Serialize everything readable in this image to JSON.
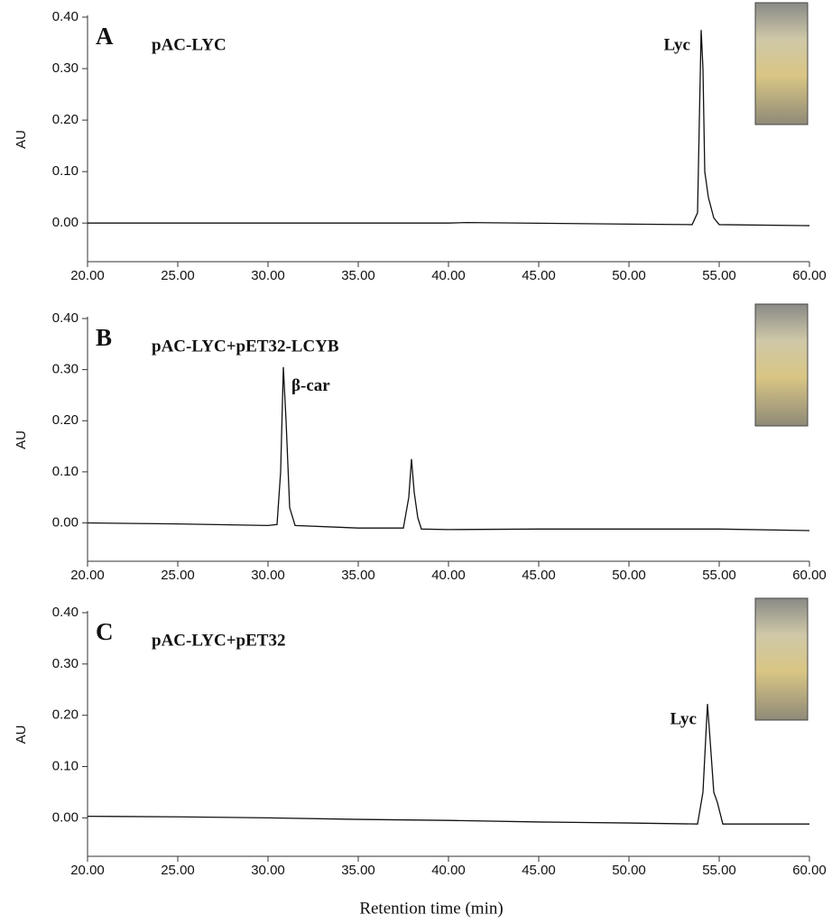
{
  "chart_data": [
    {
      "type": "line",
      "panel_label": "A",
      "title": "pAC-LYC",
      "ylabel": "AU",
      "annotations": [
        {
          "text": "Lyc"
        }
      ],
      "xlim": [
        20,
        60
      ],
      "ylim": [
        -0.075,
        0.4
      ],
      "xticks": [
        {
          "value": 20,
          "label": "20.00"
        },
        {
          "value": 25,
          "label": "25.00"
        },
        {
          "value": 30,
          "label": "30.00"
        },
        {
          "value": 35,
          "label": "35.00"
        },
        {
          "value": 40,
          "label": "40.00"
        },
        {
          "value": 45,
          "label": "45.00"
        },
        {
          "value": 50,
          "label": "50.00"
        },
        {
          "value": 55,
          "label": "55.00"
        },
        {
          "value": 60,
          "label": "60.00"
        }
      ],
      "yticks": [
        {
          "value": 0,
          "label": "0.00"
        },
        {
          "value": 0.1,
          "label": "0.10"
        },
        {
          "value": 0.2,
          "label": "0.20"
        },
        {
          "value": 0.3,
          "label": "0.30"
        },
        {
          "value": 0.4,
          "label": "0.40"
        }
      ],
      "series": [
        {
          "color": "#111111",
          "x": [
            20,
            30,
            40,
            41,
            50,
            53.5,
            53.8,
            53.9,
            54.0,
            54.1,
            54.2,
            54.4,
            54.7,
            55,
            60
          ],
          "values": [
            0,
            0,
            0,
            0.001,
            -0.002,
            -0.003,
            0.02,
            0.2,
            0.375,
            0.3,
            0.1,
            0.05,
            0.01,
            -0.003,
            -0.005
          ]
        }
      ]
    },
    {
      "type": "line",
      "panel_label": "B",
      "title": "pAC-LYC+pET32-LCYB",
      "ylabel": "AU",
      "annotations": [
        {
          "text": "β-car"
        }
      ],
      "xlim": [
        20,
        60
      ],
      "ylim": [
        -0.075,
        0.4
      ],
      "xticks": [
        {
          "value": 20,
          "label": "20.00"
        },
        {
          "value": 25,
          "label": "25.00"
        },
        {
          "value": 30,
          "label": "30.00"
        },
        {
          "value": 35,
          "label": "35.00"
        },
        {
          "value": 40,
          "label": "40.00"
        },
        {
          "value": 45,
          "label": "45.00"
        },
        {
          "value": 50,
          "label": "50.00"
        },
        {
          "value": 55,
          "label": "55.00"
        },
        {
          "value": 60,
          "label": "60.00"
        }
      ],
      "yticks": [
        {
          "value": 0,
          "label": "0.00"
        },
        {
          "value": 0.1,
          "label": "0.10"
        },
        {
          "value": 0.2,
          "label": "0.20"
        },
        {
          "value": 0.3,
          "label": "0.30"
        },
        {
          "value": 0.4,
          "label": "0.40"
        }
      ],
      "series": [
        {
          "color": "#111111",
          "x": [
            20,
            25,
            30,
            30.5,
            30.7,
            30.85,
            31,
            31.2,
            31.5,
            35,
            37.5,
            37.8,
            37.95,
            38.1,
            38.3,
            38.5,
            40,
            45,
            50,
            55,
            60
          ],
          "values": [
            0,
            -0.002,
            -0.005,
            -0.003,
            0.1,
            0.305,
            0.2,
            0.03,
            -0.005,
            -0.01,
            -0.01,
            0.05,
            0.125,
            0.06,
            0.01,
            -0.012,
            -0.013,
            -0.012,
            -0.012,
            -0.012,
            -0.015
          ]
        }
      ]
    },
    {
      "type": "line",
      "panel_label": "C",
      "title": "pAC-LYC+pET32",
      "ylabel": "AU",
      "xlabel": "Retention time (min)",
      "annotations": [
        {
          "text": "Lyc"
        }
      ],
      "xlim": [
        20,
        60
      ],
      "ylim": [
        -0.075,
        0.4
      ],
      "xticks": [
        {
          "value": 20,
          "label": "20.00"
        },
        {
          "value": 25,
          "label": "25.00"
        },
        {
          "value": 30,
          "label": "30.00"
        },
        {
          "value": 35,
          "label": "35.00"
        },
        {
          "value": 40,
          "label": "40.00"
        },
        {
          "value": 45,
          "label": "45.00"
        },
        {
          "value": 50,
          "label": "50.00"
        },
        {
          "value": 55,
          "label": "55.00"
        },
        {
          "value": 60,
          "label": "60.00"
        }
      ],
      "yticks": [
        {
          "value": 0,
          "label": "0.00"
        },
        {
          "value": 0.1,
          "label": "0.10"
        },
        {
          "value": 0.2,
          "label": "0.20"
        },
        {
          "value": 0.3,
          "label": "0.30"
        },
        {
          "value": 0.4,
          "label": "0.40"
        }
      ],
      "series": [
        {
          "color": "#111111",
          "x": [
            20,
            25,
            30,
            35,
            40,
            45,
            50,
            53.8,
            54.1,
            54.35,
            54.5,
            54.7,
            54.9,
            55.2,
            60
          ],
          "values": [
            0.003,
            0.002,
            0,
            -0.003,
            -0.005,
            -0.008,
            -0.01,
            -0.012,
            0.05,
            0.222,
            0.15,
            0.05,
            0.03,
            -0.012,
            -0.012
          ]
        }
      ]
    }
  ]
}
